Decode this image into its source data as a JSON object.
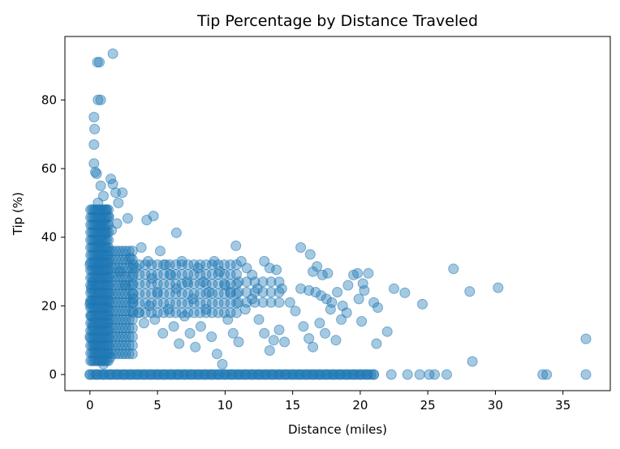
{
  "chart_data": {
    "type": "scatter",
    "title": "Tip Percentage by Distance Traveled",
    "xlabel": "Distance (miles)",
    "ylabel": "Tip (%)",
    "xlim": [
      -1.85,
      38.5
    ],
    "ylim": [
      -4.7,
      98.5
    ],
    "x_ticks": [
      0,
      5,
      10,
      15,
      20,
      25,
      30,
      35
    ],
    "y_ticks": [
      0,
      20,
      40,
      60,
      80
    ],
    "grid": false,
    "marker_color": "#1f77b4",
    "marker_opacity": 0.4,
    "series": [
      {
        "points": [
          [
            1.7,
            93.5
          ],
          [
            0.55,
            91
          ],
          [
            0.7,
            91
          ],
          [
            0.6,
            80
          ],
          [
            0.8,
            80
          ],
          [
            0.3,
            75
          ],
          [
            0.35,
            71.5
          ],
          [
            0.3,
            67
          ],
          [
            0.3,
            61.5
          ],
          [
            0.4,
            59
          ],
          [
            0.5,
            58.5
          ],
          [
            1.55,
            57
          ],
          [
            1.7,
            55.5
          ],
          [
            2.4,
            53
          ],
          [
            1.9,
            53
          ],
          [
            2.1,
            50
          ],
          [
            0.8,
            55
          ],
          [
            1.0,
            52
          ],
          [
            0.6,
            50
          ],
          [
            1.2,
            48
          ],
          [
            1.4,
            46
          ],
          [
            2.8,
            45.5
          ],
          [
            4.2,
            45
          ],
          [
            4.7,
            46.2
          ],
          [
            6.4,
            41.3
          ],
          [
            2.0,
            44
          ],
          [
            1.6,
            42
          ],
          [
            0.9,
            44
          ],
          [
            1.1,
            41
          ],
          [
            0.7,
            38
          ],
          [
            0.2,
            27
          ],
          [
            0.1,
            25
          ],
          [
            0.05,
            21
          ],
          [
            0.0,
            20.5
          ],
          [
            0.1,
            17
          ],
          [
            0.2,
            14
          ],
          [
            0.0,
            11
          ],
          [
            0.3,
            9
          ],
          [
            0.4,
            6
          ],
          [
            1.5,
            5
          ],
          [
            1.0,
            3
          ],
          [
            0.8,
            34
          ],
          [
            0.5,
            31
          ],
          [
            0.0,
            32
          ],
          [
            2.2,
            30
          ],
          [
            2.6,
            26
          ],
          [
            3.0,
            34
          ],
          [
            3.4,
            31
          ],
          [
            3.8,
            37
          ],
          [
            4.3,
            33
          ],
          [
            4.6,
            28
          ],
          [
            5.0,
            24
          ],
          [
            5.2,
            36
          ],
          [
            5.6,
            32
          ],
          [
            6.0,
            29
          ],
          [
            6.4,
            25
          ],
          [
            6.8,
            33
          ],
          [
            7.2,
            27
          ],
          [
            7.6,
            22
          ],
          [
            8.0,
            31
          ],
          [
            8.4,
            27
          ],
          [
            8.8,
            24
          ],
          [
            9.2,
            33
          ],
          [
            9.6,
            30
          ],
          [
            10.0,
            26
          ],
          [
            10.4,
            24
          ],
          [
            10.8,
            37.5
          ],
          [
            11.2,
            33
          ],
          [
            11.6,
            31
          ],
          [
            12.0,
            29
          ],
          [
            12.4,
            25
          ],
          [
            12.9,
            33
          ],
          [
            13.3,
            31
          ],
          [
            13.8,
            30.5
          ],
          [
            14.2,
            25
          ],
          [
            3.2,
            22
          ],
          [
            3.6,
            18
          ],
          [
            4.0,
            15
          ],
          [
            4.4,
            20
          ],
          [
            4.8,
            16
          ],
          [
            5.4,
            12
          ],
          [
            5.8,
            19
          ],
          [
            6.2,
            14
          ],
          [
            6.6,
            9
          ],
          [
            7.0,
            17
          ],
          [
            7.4,
            12
          ],
          [
            7.8,
            8
          ],
          [
            8.2,
            14
          ],
          [
            8.6,
            19
          ],
          [
            9.0,
            11
          ],
          [
            9.4,
            6
          ],
          [
            9.8,
            3
          ],
          [
            10.2,
            16
          ],
          [
            10.6,
            12
          ],
          [
            11.0,
            9.5
          ],
          [
            11.5,
            19
          ],
          [
            12.0,
            22
          ],
          [
            12.5,
            16
          ],
          [
            12.9,
            12
          ],
          [
            13.3,
            7
          ],
          [
            13.6,
            10
          ],
          [
            14.0,
            13
          ],
          [
            14.4,
            9.5
          ],
          [
            14.8,
            21
          ],
          [
            15.2,
            18.5
          ],
          [
            15.6,
            25
          ],
          [
            15.6,
            37
          ],
          [
            16.3,
            35
          ],
          [
            16.5,
            30
          ],
          [
            16.8,
            31.5
          ],
          [
            17.2,
            29
          ],
          [
            17.6,
            29.5
          ],
          [
            16.2,
            24.5
          ],
          [
            16.7,
            24
          ],
          [
            17.1,
            23
          ],
          [
            17.5,
            22
          ],
          [
            17.9,
            21
          ],
          [
            18.3,
            24
          ],
          [
            18.7,
            20
          ],
          [
            19.1,
            26
          ],
          [
            19.5,
            29
          ],
          [
            19.9,
            22
          ],
          [
            20.3,
            24.5
          ],
          [
            19.8,
            29.5
          ],
          [
            20.6,
            29.5
          ],
          [
            20.2,
            26.5
          ],
          [
            15.8,
            14
          ],
          [
            16.2,
            10.5
          ],
          [
            16.5,
            8
          ],
          [
            17.0,
            15
          ],
          [
            17.4,
            12
          ],
          [
            17.8,
            19
          ],
          [
            18.2,
            10
          ],
          [
            18.6,
            16
          ],
          [
            19.0,
            18
          ],
          [
            20.1,
            15.5
          ],
          [
            21.0,
            21
          ],
          [
            21.3,
            19.5
          ],
          [
            21.2,
            9
          ],
          [
            22.0,
            12.5
          ],
          [
            22.5,
            25
          ],
          [
            23.3,
            23.8
          ],
          [
            24.6,
            20.5
          ],
          [
            26.9,
            30.8
          ],
          [
            28.1,
            24.2
          ],
          [
            30.2,
            25.3
          ],
          [
            28.3,
            3.8
          ],
          [
            36.7,
            10.4
          ],
          [
            0.0,
            0
          ],
          [
            0.5,
            0
          ],
          [
            1.0,
            0
          ],
          [
            1.5,
            0
          ],
          [
            2.0,
            0
          ],
          [
            2.5,
            0
          ],
          [
            3.0,
            0
          ],
          [
            3.5,
            0
          ],
          [
            4.0,
            0
          ],
          [
            4.5,
            0
          ],
          [
            5.0,
            0
          ],
          [
            5.5,
            0
          ],
          [
            6.0,
            0
          ],
          [
            6.5,
            0
          ],
          [
            7.0,
            0
          ],
          [
            7.5,
            0
          ],
          [
            8.0,
            0
          ],
          [
            8.5,
            0
          ],
          [
            9.0,
            0
          ],
          [
            9.5,
            0
          ],
          [
            10.0,
            0
          ],
          [
            10.5,
            0
          ],
          [
            11.0,
            0
          ],
          [
            11.5,
            0
          ],
          [
            12.0,
            0
          ],
          [
            12.5,
            0
          ],
          [
            13.0,
            0
          ],
          [
            13.5,
            0
          ],
          [
            14.0,
            0
          ],
          [
            14.5,
            0
          ],
          [
            15.0,
            0
          ],
          [
            15.5,
            0
          ],
          [
            16.0,
            0
          ],
          [
            16.5,
            0
          ],
          [
            17.0,
            0
          ],
          [
            17.5,
            0
          ],
          [
            18.0,
            0
          ],
          [
            18.5,
            0
          ],
          [
            19.0,
            0
          ],
          [
            19.5,
            0
          ],
          [
            20.0,
            0
          ],
          [
            20.5,
            0
          ],
          [
            21.0,
            0
          ],
          [
            22.3,
            0
          ],
          [
            23.5,
            0
          ],
          [
            24.4,
            0
          ],
          [
            25.1,
            0
          ],
          [
            25.5,
            0
          ],
          [
            26.4,
            0
          ],
          [
            33.5,
            0
          ],
          [
            33.8,
            0
          ],
          [
            36.7,
            0
          ]
        ]
      }
    ]
  }
}
